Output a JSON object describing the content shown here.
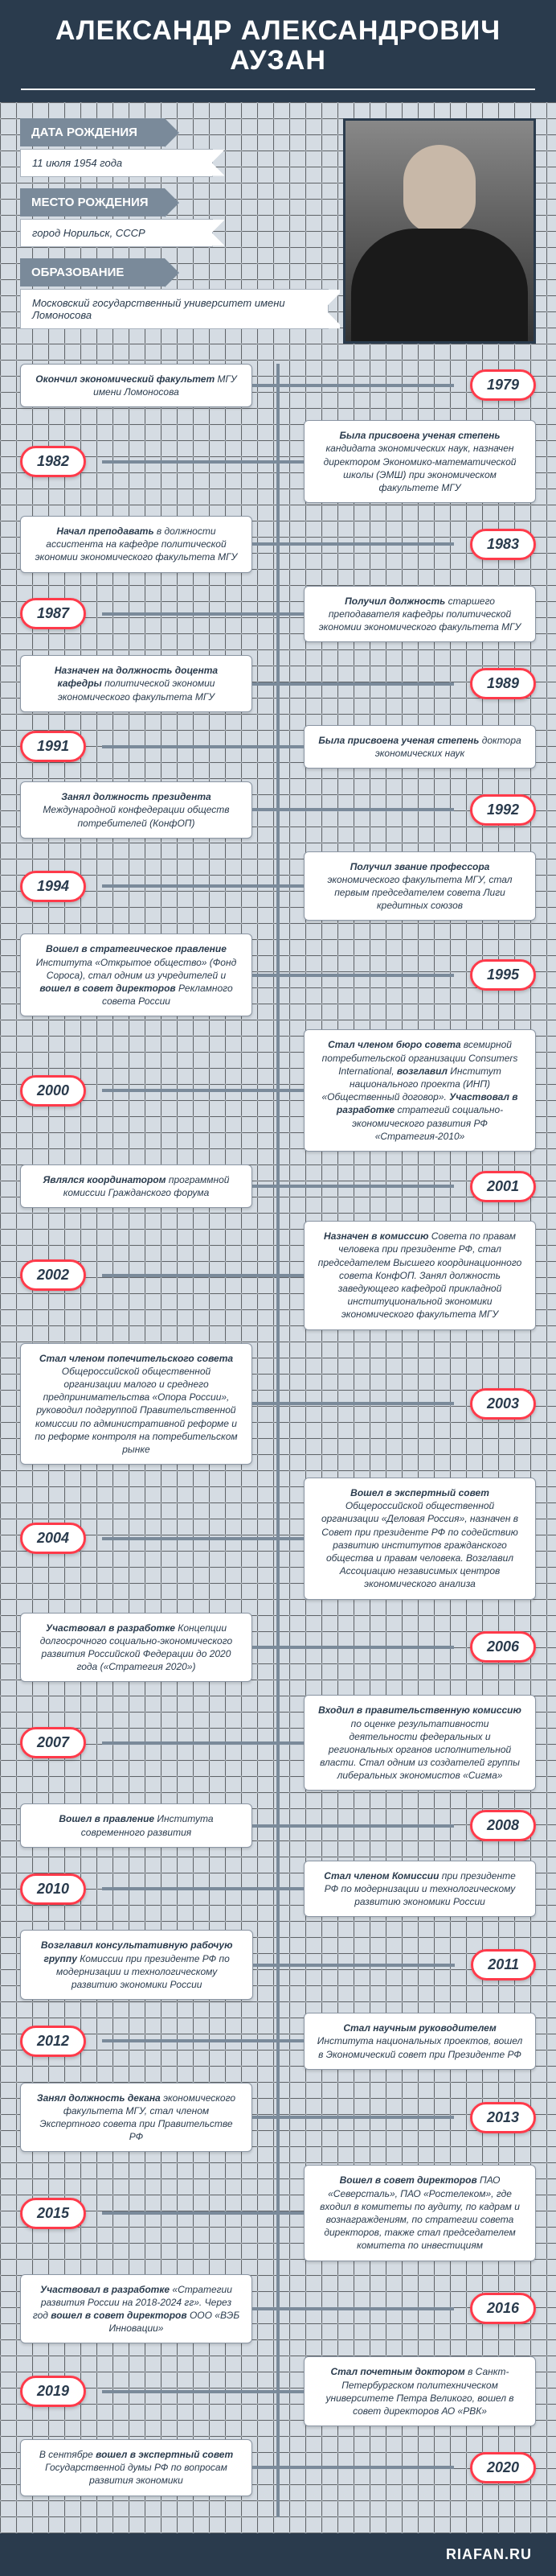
{
  "title": "АЛЕКСАНДР АЛЕКСАНДРОВИЧ АУЗАН",
  "info": [
    {
      "label": "ДАТА РОЖДЕНИЯ",
      "value": "11 июля 1954 года"
    },
    {
      "label": "МЕСТО РОЖДЕНИЯ",
      "value": "город Норильск, СССР"
    },
    {
      "label": "ОБРАЗОВАНИЕ",
      "value": "Московский государственный университет имени Ломоносова"
    }
  ],
  "events": [
    {
      "year": "1979",
      "side": "r",
      "text": "<b>Окончил экономический факультет</b> МГУ имени Ломоносова"
    },
    {
      "year": "1982",
      "side": "l",
      "text": "<b>Была присвоена ученая степень</b> кандидата экономических наук, назначен директором Экономико-математической школы (ЭМШ) при экономическом факультете МГУ"
    },
    {
      "year": "1983",
      "side": "r",
      "text": "<b>Начал преподавать</b> в должности ассистента на кафедре политической экономии экономического факультета МГУ"
    },
    {
      "year": "1987",
      "side": "l",
      "text": "<b>Получил должность</b> старшего преподавателя кафедры политической экономии экономического факультета МГУ"
    },
    {
      "year": "1989",
      "side": "r",
      "text": "<b>Назначен на должность доцента кафедры</b> политической экономии экономического факультета МГУ"
    },
    {
      "year": "1991",
      "side": "l",
      "text": "<b>Была присвоена ученая степень</b> доктора экономических наук"
    },
    {
      "year": "1992",
      "side": "r",
      "text": "<b>Занял должность президента</b> Международной конфедерации обществ потребителей (КонфОП)"
    },
    {
      "year": "1994",
      "side": "l",
      "text": "<b>Получил звание профессора</b> экономического факультета МГУ, стал первым председателем совета Лиги кредитных союзов"
    },
    {
      "year": "1995",
      "side": "r",
      "text": "<b>Вошел в стратегическое правление</b> Института «Открытое общество» (Фонд Сороса), стал одним из учредителей и <b>вошел в совет директоров</b> Рекламного совета России"
    },
    {
      "year": "2000",
      "side": "l",
      "text": "<b>Стал членом бюро совета</b> всемирной потребительской организации Consumers International, <b>возглавил</b> Институт национального проекта (ИНП) «Общественный договор». <b>Участвовал в разработке</b> стратегий социально-экономического развития РФ «Стратегия-2010»"
    },
    {
      "year": "2001",
      "side": "r",
      "text": "<b>Являлся координатором</b> программной комиссии Гражданского форума"
    },
    {
      "year": "2002",
      "side": "l",
      "text": "<b>Назначен в комиссию</b> Совета по правам человека при президенте РФ, стал председателем Высшего координационного совета КонфОП. Занял должность заведующего кафедрой прикладной институциональной экономики экономического факультета МГУ"
    },
    {
      "year": "2003",
      "side": "r",
      "text": "<b>Стал членом попечительского совета</b> Общероссийской общественной организации малого и среднего предпринимательства «Опора России», руководил подгруппой Правительственной комиссии по административной реформе и по реформе контроля на потребительском рынке"
    },
    {
      "year": "2004",
      "side": "l",
      "text": "<b>Вошел в экспертный совет</b> Общероссийской общественной организации «Деловая Россия», назначен в Совет при президенте РФ по содействию развитию институтов гражданского общества и правам человека. Возглавил Ассоциацию независимых центров экономического анализа"
    },
    {
      "year": "2006",
      "side": "r",
      "text": "<b>Участвовал в разработке</b> Концепции долгосрочного социально-экономического развития Российской Федерации до 2020 года («Стратегия 2020»)"
    },
    {
      "year": "2007",
      "side": "l",
      "text": "<b>Входил в правительственную комиссию</b> по оценке результативности деятельности федеральных и региональных органов исполнительной власти. Стал одним из создателей группы либеральных экономистов «Сигма»"
    },
    {
      "year": "2008",
      "side": "r",
      "text": "<b>Вошел в правление</b> Института современного развития"
    },
    {
      "year": "2010",
      "side": "l",
      "text": "<b>Стал членом Комиссии</b> при президенте РФ по модернизации и технологическому развитию экономики России"
    },
    {
      "year": "2011",
      "side": "r",
      "text": "<b>Возглавил консультативную рабочую группу</b> Комиссии при президенте РФ по модернизации и технологическому развитию экономики России"
    },
    {
      "year": "2012",
      "side": "l",
      "text": "<b>Стал научным руководителем</b> Института национальных проектов, вошел в Экономический совет при Президенте РФ"
    },
    {
      "year": "2013",
      "side": "r",
      "text": "<b>Занял должность декана</b> экономического факультета МГУ, стал членом Экспертного совета при Правительстве РФ"
    },
    {
      "year": "2015",
      "side": "l",
      "text": "<b>Вошел в совет директоров</b> ПАО «Северсталь», ПАО «Ростелеком», где входил в комитеты по аудиту, по кадрам и вознаграждениям, по стратегии совета директоров, также стал председателем комитета по инвестициям"
    },
    {
      "year": "2016",
      "side": "r",
      "text": "<b>Участвовал в разработке</b> «Стратегии развития России на 2018-2024 гг». Через год <b>вошел в совет директоров</b> ООО «ВЭБ Инновации»"
    },
    {
      "year": "2019",
      "side": "l",
      "text": "<b>Стал почетным доктором</b> в Санкт-Петербургском политехническом университете Петра Великого, вошел в совет директоров АО «РВК»"
    },
    {
      "year": "2020",
      "side": "r",
      "text": "В сентябре <b>вошел в экспертный совет</b> Государственной думы РФ по вопросам развития экономики"
    }
  ],
  "footer": "RIAFAN.RU",
  "colors": {
    "bg": "#2a3b4d",
    "grid": "#d5dce3",
    "accent": "#ff3a4a",
    "header_block": "#7a8a9a"
  }
}
